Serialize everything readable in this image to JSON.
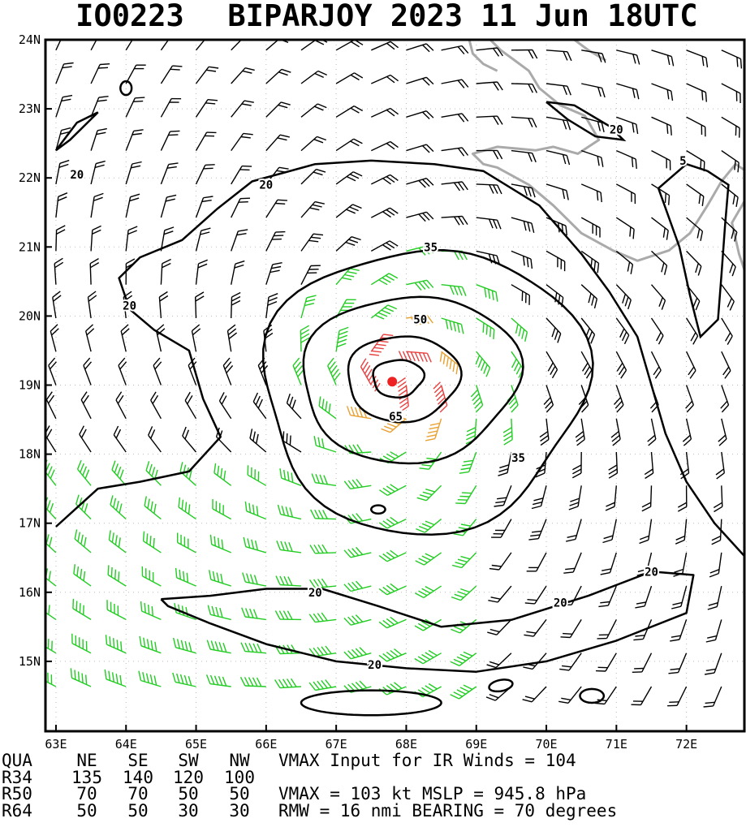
{
  "title": {
    "storm_id": "IO0223",
    "text": "BIPARJOY 2023 11 Jun 18UTC"
  },
  "chart_data": {
    "type": "wind barb contour map",
    "xlim": [
      62.85,
      72.85
    ],
    "ylim": [
      14.2,
      24.0
    ],
    "x_ticks": [
      {
        "value": 63,
        "label": "63E"
      },
      {
        "value": 64,
        "label": "64E"
      },
      {
        "value": 65,
        "label": "65E"
      },
      {
        "value": 66,
        "label": "66E"
      },
      {
        "value": 67,
        "label": "67E"
      },
      {
        "value": 68,
        "label": "68E"
      },
      {
        "value": 69,
        "label": "69E"
      },
      {
        "value": 70,
        "label": "70E"
      },
      {
        "value": 71,
        "label": "71E"
      },
      {
        "value": 72,
        "label": "72E"
      }
    ],
    "y_ticks": [
      {
        "value": 24,
        "label": "24N"
      },
      {
        "value": 23,
        "label": "23N"
      },
      {
        "value": 22,
        "label": "22N"
      },
      {
        "value": 21,
        "label": "21N"
      },
      {
        "value": 20,
        "label": "20N"
      },
      {
        "value": 19,
        "label": "19N"
      },
      {
        "value": 18,
        "label": "18N"
      },
      {
        "value": 17,
        "label": "17N"
      },
      {
        "value": 16,
        "label": "16N"
      },
      {
        "value": 15,
        "label": "15N"
      }
    ],
    "center": {
      "lon": 67.8,
      "lat": 19.05
    },
    "contour_labels": [
      {
        "text": "20",
        "lon": 63.3,
        "lat": 22.05
      },
      {
        "text": "20",
        "lon": 66.0,
        "lat": 21.9
      },
      {
        "text": "20",
        "lon": 64.05,
        "lat": 20.15
      },
      {
        "text": "20",
        "lon": 71.0,
        "lat": 22.7
      },
      {
        "text": "5",
        "lon": 71.95,
        "lat": 22.25
      },
      {
        "text": "35",
        "lon": 68.35,
        "lat": 21.0
      },
      {
        "text": "50",
        "lon": 68.2,
        "lat": 19.95
      },
      {
        "text": "65",
        "lon": 67.85,
        "lat": 18.55
      },
      {
        "text": "35",
        "lon": 69.6,
        "lat": 17.95
      },
      {
        "text": "20",
        "lon": 66.7,
        "lat": 16.0
      },
      {
        "text": "20",
        "lon": 70.2,
        "lat": 15.85
      },
      {
        "text": "20",
        "lon": 71.5,
        "lat": 16.3
      },
      {
        "text": "20",
        "lon": 67.55,
        "lat": 14.95
      }
    ],
    "colors": {
      "below_34kt": "#000000",
      "34_to_49kt": "#22cc22",
      "50_to_63kt": "#e8a030",
      "64kt_plus": "#e84040",
      "coast": "#aaaaaa",
      "contour": "#000000",
      "center": "#ee2222"
    }
  },
  "info": {
    "header": {
      "qua": "QUA",
      "ne": "NE",
      "se": "SE",
      "sw": "SW",
      "nw": "NW"
    },
    "vmax_input": "VMAX Input for IR Winds =  104",
    "rows": [
      {
        "name": "R34",
        "ne": "135",
        "se": "140",
        "sw": "120",
        "nw": "100",
        "extra": ""
      },
      {
        "name": "R50",
        "ne": "70",
        "se": "70",
        "sw": "50",
        "nw": "50",
        "extra": "VMAX =  103 kt MSLP =  945.8 hPa"
      },
      {
        "name": "R64",
        "ne": "50",
        "se": "50",
        "sw": "30",
        "nw": "30",
        "extra": "RMW  =  16 nmi BEARING =   70 degrees"
      }
    ]
  }
}
